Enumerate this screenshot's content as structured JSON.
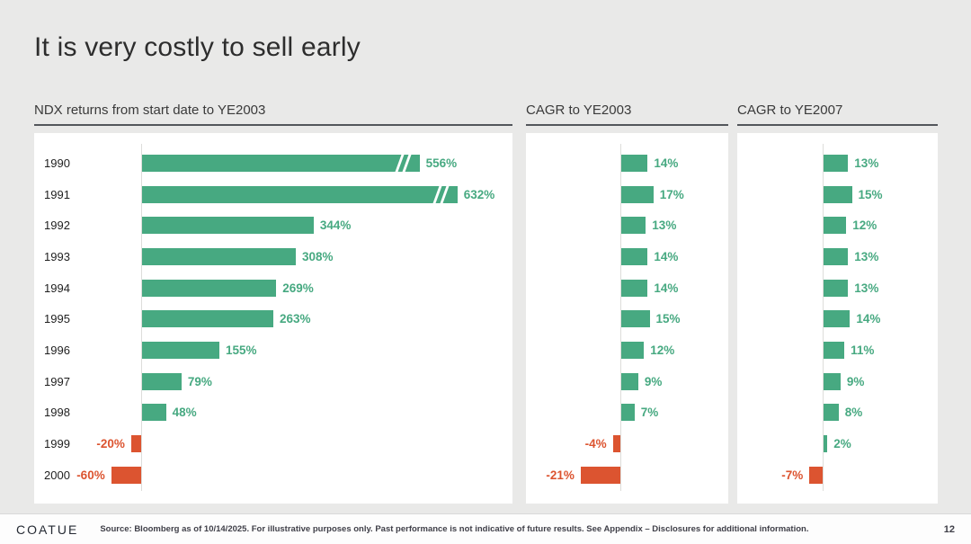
{
  "slide": {
    "title": "It is very costly to sell early",
    "logo_text": "COATUE",
    "source_text": "Source: Bloomberg as of 10/14/2025. For illustrative purposes only. Past performance is not indicative of future results. See Appendix – Disclosures for additional information.",
    "page_number": "12"
  },
  "colors": {
    "positive_bar": "#47a981",
    "negative_bar": "#dc5430",
    "positive_label": "#47a981",
    "negative_label": "#dc5430",
    "background": "#e9e9e8",
    "panel_background": "#ffffff",
    "rule": "#53565b"
  },
  "chart_data": [
    {
      "type": "bar",
      "orientation": "horizontal",
      "title": "NDX returns from start date to YE2003",
      "unit": "%",
      "categories": [
        "1990",
        "1991",
        "1992",
        "1993",
        "1994",
        "1995",
        "1996",
        "1997",
        "1998",
        "1999",
        "2000"
      ],
      "values": [
        556,
        632,
        344,
        308,
        269,
        263,
        155,
        79,
        48,
        -20,
        -60
      ],
      "labels": [
        "556%",
        "632%",
        "344%",
        "308%",
        "269%",
        "263%",
        "155%",
        "79%",
        "48%",
        "-20%",
        "-60%"
      ],
      "truncated_bars": [
        "1990",
        "1991"
      ],
      "show_category_labels": true,
      "xlim": [
        -80,
        700
      ],
      "grid": false,
      "legend": false
    },
    {
      "type": "bar",
      "orientation": "horizontal",
      "title": "CAGR to YE2003",
      "unit": "%",
      "categories": [
        "1990",
        "1991",
        "1992",
        "1993",
        "1994",
        "1995",
        "1996",
        "1997",
        "1998",
        "1999",
        "2000"
      ],
      "values": [
        14,
        17,
        13,
        14,
        14,
        15,
        12,
        9,
        7,
        -4,
        -21
      ],
      "labels": [
        "14%",
        "17%",
        "13%",
        "14%",
        "14%",
        "15%",
        "12%",
        "9%",
        "7%",
        "-4%",
        "-21%"
      ],
      "truncated_bars": [],
      "show_category_labels": false,
      "xlim": [
        -25,
        40
      ],
      "grid": false,
      "legend": false
    },
    {
      "type": "bar",
      "orientation": "horizontal",
      "title": "CAGR to YE2007",
      "unit": "%",
      "categories": [
        "1990",
        "1991",
        "1992",
        "1993",
        "1994",
        "1995",
        "1996",
        "1997",
        "1998",
        "1999",
        "2000"
      ],
      "values": [
        13,
        15,
        12,
        13,
        13,
        14,
        11,
        9,
        8,
        2,
        -7
      ],
      "labels": [
        "13%",
        "15%",
        "12%",
        "13%",
        "13%",
        "14%",
        "11%",
        "9%",
        "8%",
        "2%",
        "-7%"
      ],
      "truncated_bars": [],
      "show_category_labels": false,
      "xlim": [
        -15,
        40
      ],
      "grid": false,
      "legend": false
    }
  ]
}
